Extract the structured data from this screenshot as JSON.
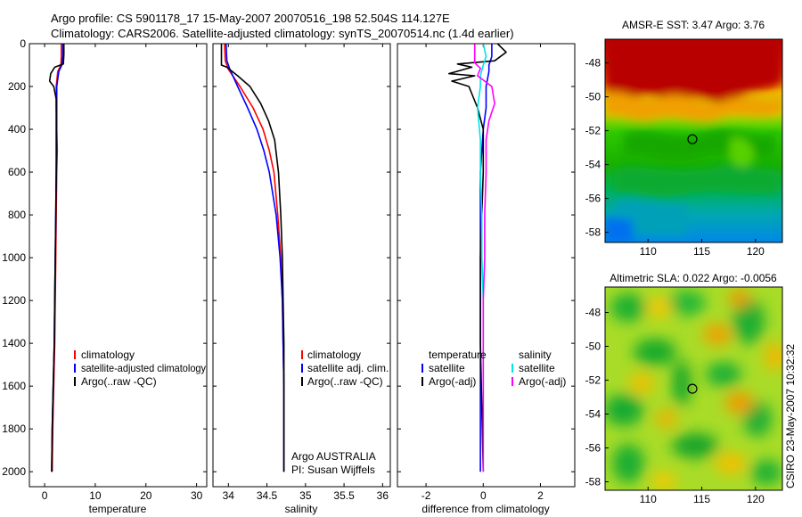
{
  "header": {
    "line1": "Argo profile: CS 5901178_17 15-May-2007 20070516_198 52.504S 114.127E",
    "line2": "Climatology: CARS2006. Satellite-adjusted climatology: synTS_20070514.nc (1.4d earlier)"
  },
  "side_label": "CSIRO 23-May-2007 10:32:32",
  "colors": {
    "climatology": "#ff0000",
    "satellite": "#0000ff",
    "argo": "#000000",
    "sal_satellite": "#00e5e5",
    "sal_argo": "#ff00ff"
  },
  "chart_data": [
    {
      "type": "line",
      "id": "temperature",
      "xlabel": "temperature",
      "ylabel": "",
      "xlim": [
        -3,
        32
      ],
      "ylim": [
        0,
        2070
      ],
      "y_reversed": true,
      "xticks": [
        0,
        10,
        20,
        30
      ],
      "xtick_labels": [
        "0",
        "10",
        "20",
        "30"
      ],
      "yticks": [
        0,
        200,
        400,
        600,
        800,
        1000,
        1200,
        1400,
        1600,
        1800,
        2000
      ],
      "ytick_labels": [
        "0",
        "200",
        "400",
        "600",
        "800",
        "1000",
        "1200",
        "1400",
        "1600",
        "1800",
        "2000"
      ],
      "legend": [
        "climatology",
        "satellite-adjusted climatology",
        "Argo(..raw -QC)"
      ],
      "series": [
        {
          "name": "climatology",
          "color": "#ff0000",
          "points": [
            [
              3.3,
              0
            ],
            [
              3.3,
              60
            ],
            [
              3.2,
              100
            ],
            [
              2.6,
              130
            ],
            [
              2.3,
              200
            ],
            [
              2.3,
              300
            ],
            [
              2.4,
              400
            ],
            [
              2.5,
              500
            ],
            [
              2.4,
              600
            ],
            [
              2.3,
              800
            ],
            [
              2.2,
              1000
            ],
            [
              2.1,
              1200
            ],
            [
              2.0,
              1400
            ],
            [
              1.8,
              1600
            ],
            [
              1.6,
              1800
            ],
            [
              1.5,
              2000
            ]
          ]
        },
        {
          "name": "satellite-adjusted climatology",
          "color": "#0000ff",
          "points": [
            [
              3.6,
              0
            ],
            [
              3.6,
              60
            ],
            [
              3.4,
              100
            ],
            [
              2.8,
              130
            ],
            [
              2.4,
              200
            ],
            [
              2.4,
              300
            ],
            [
              2.4,
              400
            ],
            [
              2.3,
              600
            ],
            [
              2.2,
              800
            ],
            [
              2.1,
              1000
            ],
            [
              2.0,
              1200
            ],
            [
              1.9,
              1400
            ],
            [
              1.7,
              1600
            ],
            [
              1.5,
              1800
            ],
            [
              1.4,
              2000
            ]
          ]
        },
        {
          "name": "Argo(..raw -QC)",
          "color": "#000000",
          "points": [
            [
              3.8,
              0
            ],
            [
              3.8,
              50
            ],
            [
              3.7,
              95
            ],
            [
              2.0,
              110
            ],
            [
              1.2,
              140
            ],
            [
              1.0,
              175
            ],
            [
              1.8,
              200
            ],
            [
              2.3,
              260
            ],
            [
              2.3,
              400
            ],
            [
              2.3,
              600
            ],
            [
              2.2,
              800
            ],
            [
              2.1,
              1000
            ],
            [
              2.0,
              1200
            ],
            [
              1.9,
              1400
            ],
            [
              1.7,
              1600
            ],
            [
              1.5,
              1800
            ],
            [
              1.4,
              2000
            ]
          ]
        }
      ]
    },
    {
      "type": "line",
      "id": "salinity",
      "xlabel": "salinity",
      "xlim": [
        33.8,
        36.1
      ],
      "ylim": [
        0,
        2070
      ],
      "y_reversed": true,
      "xticks": [
        34,
        34.5,
        35,
        35.5,
        36
      ],
      "xtick_labels": [
        "34",
        "34.5",
        "35",
        "35.5",
        "36"
      ],
      "legend": [
        "climatology",
        "satellite adj. clim.",
        "Argo(..raw -QC)"
      ],
      "annotation": [
        "Argo AUSTRALIA",
        "PI: Susan Wijffels"
      ],
      "series": [
        {
          "name": "climatology",
          "color": "#ff0000",
          "points": [
            [
              33.95,
              0
            ],
            [
              33.96,
              80
            ],
            [
              34.0,
              120
            ],
            [
              34.15,
              200
            ],
            [
              34.32,
              300
            ],
            [
              34.45,
              400
            ],
            [
              34.53,
              500
            ],
            [
              34.59,
              600
            ],
            [
              34.64,
              800
            ],
            [
              34.68,
              1000
            ],
            [
              34.7,
              1200
            ],
            [
              34.71,
              1400
            ],
            [
              34.72,
              1600
            ],
            [
              34.72,
              1800
            ],
            [
              34.72,
              2000
            ]
          ]
        },
        {
          "name": "satellite adj. clim.",
          "color": "#0000ff",
          "points": [
            [
              33.97,
              0
            ],
            [
              33.98,
              80
            ],
            [
              34.02,
              120
            ],
            [
              34.12,
              200
            ],
            [
              34.25,
              300
            ],
            [
              34.37,
              400
            ],
            [
              34.46,
              500
            ],
            [
              34.53,
              600
            ],
            [
              34.62,
              800
            ],
            [
              34.67,
              1000
            ],
            [
              34.7,
              1200
            ],
            [
              34.71,
              1400
            ],
            [
              34.72,
              1600
            ],
            [
              34.72,
              1800
            ],
            [
              34.72,
              2000
            ]
          ]
        },
        {
          "name": "Argo(..raw -QC)",
          "color": "#000000",
          "points": [
            [
              33.91,
              0
            ],
            [
              33.91,
              100
            ],
            [
              33.98,
              110
            ],
            [
              34.12,
              150
            ],
            [
              34.28,
              200
            ],
            [
              34.42,
              280
            ],
            [
              34.52,
              360
            ],
            [
              34.6,
              450
            ],
            [
              34.65,
              600
            ],
            [
              34.68,
              800
            ],
            [
              34.7,
              1000
            ],
            [
              34.71,
              1200
            ],
            [
              34.72,
              1400
            ],
            [
              34.72,
              1600
            ],
            [
              34.72,
              1800
            ],
            [
              34.72,
              2000
            ]
          ]
        }
      ]
    },
    {
      "type": "line",
      "id": "difference",
      "xlabel": "difference from climatology",
      "xlim": [
        -3,
        3.2
      ],
      "ylim": [
        0,
        2070
      ],
      "y_reversed": true,
      "xticks": [
        -2,
        0,
        2
      ],
      "xtick_labels": [
        "-2",
        "0",
        "2"
      ],
      "legend_groups": [
        {
          "heading": "temperature",
          "entries": [
            "satellite",
            "Argo(-adj)"
          ]
        },
        {
          "heading": "salinity",
          "entries": [
            "satellite",
            "Argo(-adj)"
          ]
        }
      ],
      "series": [
        {
          "name": "temperature satellite",
          "color": "#0000ff",
          "points": [
            [
              0.3,
              0
            ],
            [
              0.3,
              60
            ],
            [
              0.2,
              100
            ],
            [
              0.2,
              130
            ],
            [
              0.1,
              200
            ],
            [
              0.1,
              300
            ],
            [
              0.0,
              400
            ],
            [
              -0.1,
              600
            ],
            [
              -0.1,
              800
            ],
            [
              -0.1,
              1000
            ],
            [
              -0.1,
              1200
            ],
            [
              -0.1,
              1400
            ],
            [
              -0.1,
              1600
            ],
            [
              -0.1,
              1800
            ],
            [
              -0.1,
              2000
            ]
          ]
        },
        {
          "name": "temperature Argo(-adj)",
          "color": "#000000",
          "points": [
            [
              0.5,
              0
            ],
            [
              0.8,
              40
            ],
            [
              0.4,
              80
            ],
            [
              -0.9,
              95
            ],
            [
              -0.4,
              110
            ],
            [
              -1.2,
              140
            ],
            [
              -0.3,
              150
            ],
            [
              -1.1,
              175
            ],
            [
              -0.5,
              200
            ],
            [
              -0.2,
              300
            ],
            [
              0.0,
              400
            ],
            [
              0.0,
              600
            ],
            [
              -0.1,
              1000
            ],
            [
              -0.1,
              1400
            ],
            [
              0.0,
              2000
            ]
          ]
        },
        {
          "name": "salinity satellite",
          "color": "#00e5e5",
          "points": [
            [
              0.0,
              0
            ],
            [
              0.1,
              60
            ],
            [
              0.0,
              100
            ],
            [
              -0.1,
              150
            ],
            [
              -0.1,
              200
            ],
            [
              -0.2,
              300
            ],
            [
              -0.1,
              450
            ],
            [
              -0.1,
              600
            ],
            [
              -0.05,
              800
            ],
            [
              -0.05,
              1000
            ],
            [
              0.0,
              1200
            ],
            [
              0.0,
              1400
            ],
            [
              0.0,
              1600
            ],
            [
              0.0,
              1800
            ],
            [
              0.0,
              2000
            ]
          ]
        },
        {
          "name": "salinity Argo(-adj)",
          "color": "#ff00ff",
          "points": [
            [
              -0.3,
              0
            ],
            [
              -0.3,
              90
            ],
            [
              -0.1,
              115
            ],
            [
              -0.2,
              150
            ],
            [
              0.3,
              200
            ],
            [
              0.4,
              280
            ],
            [
              0.2,
              360
            ],
            [
              0.1,
              450
            ],
            [
              0.1,
              600
            ],
            [
              0.05,
              800
            ],
            [
              0.05,
              1000
            ],
            [
              0.0,
              1200
            ],
            [
              0.0,
              1400
            ],
            [
              0.0,
              1600
            ],
            [
              0.0,
              1800
            ],
            [
              0.0,
              2000
            ]
          ]
        }
      ]
    },
    {
      "type": "heatmap",
      "id": "sst",
      "title": "AMSR-E SST: 3.47 Argo: 3.76",
      "xlim": [
        106,
        122.5
      ],
      "ylim": [
        -58.6,
        -46.6
      ],
      "xticks": [
        110,
        115,
        120
      ],
      "xtick_labels": [
        "110",
        "115",
        "120"
      ],
      "yticks": [
        -48,
        -50,
        -52,
        -54,
        -56,
        -58
      ],
      "ytick_labels": [
        "-48",
        "-50",
        "-52",
        "-54",
        "-56",
        "-58"
      ],
      "marker": [
        114.127,
        -52.504
      ]
    },
    {
      "type": "heatmap",
      "id": "sla",
      "title": "Altimetric SLA: 0.022 Argo: -0.0056",
      "xlim": [
        106,
        122.5
      ],
      "ylim": [
        -58.5,
        -46.5
      ],
      "xticks": [
        110,
        115,
        120
      ],
      "xtick_labels": [
        "110",
        "115",
        "120"
      ],
      "yticks": [
        -48,
        -50,
        -52,
        -54,
        -56,
        -58
      ],
      "ytick_labels": [
        "-48",
        "-50",
        "-52",
        "-54",
        "-56",
        "-58"
      ],
      "marker": [
        114.127,
        -52.504
      ]
    }
  ]
}
